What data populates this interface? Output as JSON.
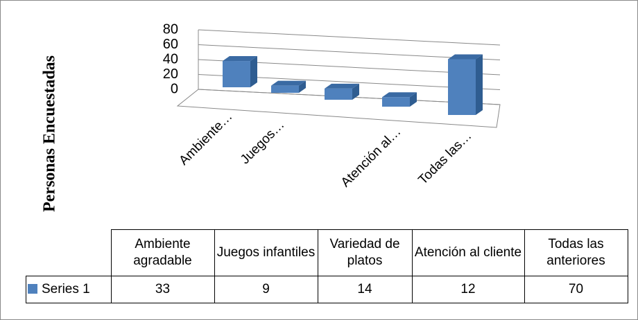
{
  "chart_data": {
    "type": "bar3d",
    "ylabel": "Personas Encuestadas",
    "categories": [
      "Ambiente agradable",
      "Juegos infantiles",
      "Variedad de platos",
      "Atención al cliente",
      "Todas las anteriores"
    ],
    "x_tick_labels": [
      "Ambiente…",
      "Juegos…",
      null,
      "Atención al…",
      "Todas las…"
    ],
    "series": [
      {
        "name": "Series 1",
        "color": "#4f81bd",
        "values": [
          33,
          9,
          14,
          12,
          70
        ]
      }
    ],
    "ylim": [
      0,
      80
    ],
    "yticks": [
      0,
      20,
      40,
      60,
      80
    ],
    "grid": true
  }
}
